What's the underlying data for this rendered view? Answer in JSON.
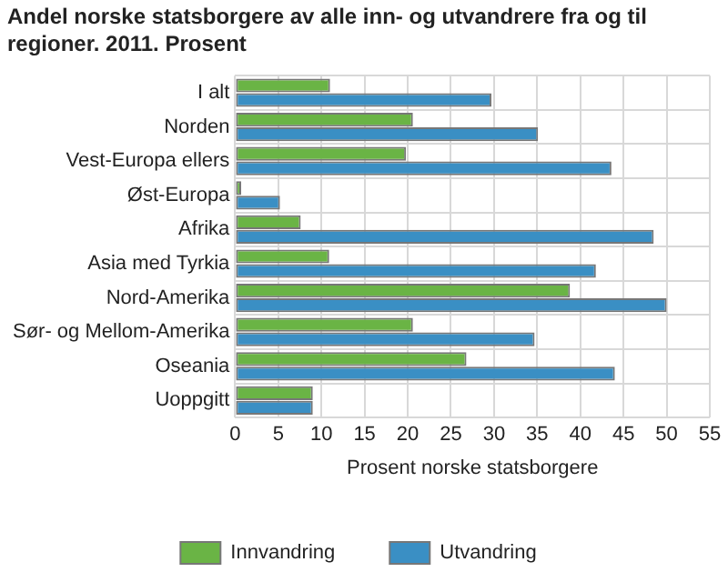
{
  "chart_data": {
    "type": "bar",
    "orientation": "horizontal",
    "title": "Andel norske statsborgere av alle inn- og utvandrere fra og til regioner. 2011. Prosent",
    "xlabel": "Prosent norske statsborgere",
    "categories": [
      "I alt",
      "Norden",
      "Vest-Europa ellers",
      "Øst-Europa",
      "Afrika",
      "Asia med Tyrkia",
      "Nord-Amerika",
      "Sør- og Mellom-Amerika",
      "Oseania",
      "Uoppgitt"
    ],
    "series": [
      {
        "name": "Innvandring",
        "color": "#6ab445",
        "values": [
          11.0,
          20.6,
          19.8,
          0.7,
          7.6,
          10.9,
          38.8,
          20.6,
          26.8,
          9.0
        ]
      },
      {
        "name": "Utvandring",
        "color": "#3a8fc4",
        "values": [
          29.7,
          35.1,
          43.6,
          5.2,
          48.5,
          41.8,
          50.0,
          34.7,
          44.0,
          9.0
        ]
      }
    ],
    "xlim": [
      0,
      55
    ],
    "xticks": [
      0,
      5,
      10,
      15,
      20,
      25,
      30,
      35,
      40,
      45,
      50,
      55
    ],
    "grid": true,
    "legend": "bottom"
  }
}
